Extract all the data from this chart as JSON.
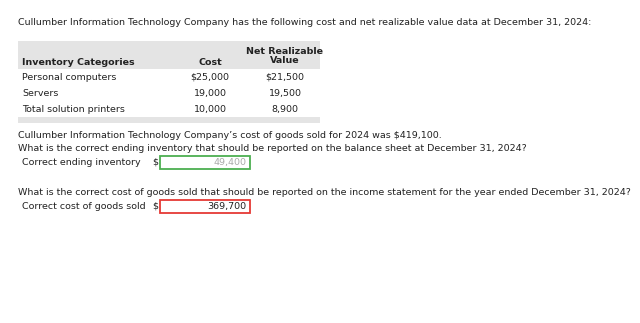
{
  "title": "Cullumber Information Technology Company has the following cost and net realizable value data at December 31, 2024:",
  "table_header_bg": "#e4e4e4",
  "table_rows": [
    [
      "Personal computers",
      "$25,000",
      "$21,500"
    ],
    [
      "Servers",
      "19,000",
      "19,500"
    ],
    [
      "Total solution printers",
      "10,000",
      "8,900"
    ]
  ],
  "cogs_statement": "Cullumber Information Technology Company’s cost of goods sold for 2024 was $419,100.",
  "q1": "What is the correct ending inventory that should be reported on the balance sheet at December 31, 2024?",
  "q1_label": "Correct ending inventory",
  "q1_value": "49,400",
  "q1_value_color": "#aaaaaa",
  "q1_box_color": "#4caf50",
  "q2": "What is the correct cost of goods sold that should be reported on the income statement for the year ended December 31, 2024?",
  "q2_label": "Correct cost of goods sold",
  "q2_value": "369,700",
  "q2_value_color": "#222222",
  "q2_box_color": "#e53935",
  "bg_color": "#ffffff",
  "text_color": "#222222",
  "font_size": 6.8
}
